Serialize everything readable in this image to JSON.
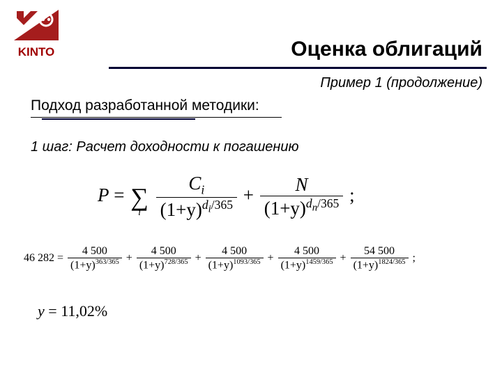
{
  "logo": {
    "text": "KINTO",
    "color": "#a51d1d"
  },
  "title": "Оценка облигаций",
  "subtitle": "Пример 1 (продолжение)",
  "approach": "Подход разработанной методики:",
  "step": "1 шаг: Расчет доходности к погашению",
  "formula_main": {
    "lhs": "P",
    "term1": {
      "num_var": "C",
      "num_sub": "i",
      "base": "(1+y)",
      "exp_var": "d",
      "exp_sub": "i",
      "exp_div": "365"
    },
    "term2": {
      "num_var": "N",
      "base": "(1+y)",
      "exp_var": "d",
      "exp_sub": "n",
      "exp_div": "365"
    },
    "sum_index": "i"
  },
  "formula_numeric": {
    "lhs": "46 282",
    "terms": [
      {
        "num": "4 500",
        "exp_num": "363",
        "exp_den": "365"
      },
      {
        "num": "4 500",
        "exp_num": "728",
        "exp_den": "365"
      },
      {
        "num": "4 500",
        "exp_num": "1093",
        "exp_den": "365"
      },
      {
        "num": "4 500",
        "exp_num": "1459",
        "exp_den": "365"
      },
      {
        "num": "54 500",
        "exp_num": "1824",
        "exp_den": "365"
      }
    ],
    "base": "(1+y)"
  },
  "result": {
    "var": "y",
    "value": "11,02%"
  },
  "colors": {
    "rule": "#000033",
    "text": "#000000",
    "background": "#ffffff"
  }
}
